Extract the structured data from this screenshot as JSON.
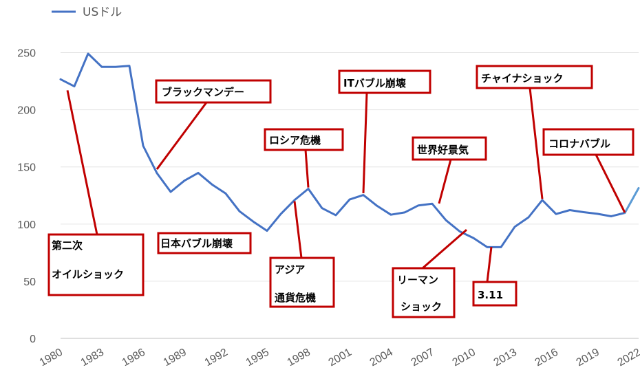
{
  "chart_data": {
    "type": "line",
    "legend": {
      "label": "USドル",
      "position": "top-left"
    },
    "series": [
      {
        "name": "USドル",
        "color": "#4472c4",
        "x": [
          1980,
          1981,
          1982,
          1983,
          1984,
          1985,
          1986,
          1987,
          1988,
          1989,
          1990,
          1991,
          1992,
          1993,
          1994,
          1995,
          1996,
          1997,
          1998,
          1999,
          2000,
          2001,
          2002,
          2003,
          2004,
          2005,
          2006,
          2007,
          2008,
          2009,
          2010,
          2011,
          2012,
          2013,
          2014,
          2015,
          2016,
          2017,
          2018,
          2019,
          2020,
          2021,
          2022
        ],
        "values": [
          226.7,
          220.5,
          249.1,
          237.5,
          237.5,
          238.5,
          168.5,
          144.6,
          128.2,
          138.0,
          144.8,
          134.7,
          126.7,
          111.2,
          102.2,
          94.1,
          108.8,
          121.0,
          130.9,
          113.9,
          107.8,
          121.5,
          125.4,
          115.9,
          108.2,
          110.2,
          116.3,
          117.8,
          103.4,
          93.6,
          87.8,
          79.8,
          79.8,
          97.6,
          105.9,
          121.0,
          108.8,
          112.2,
          110.4,
          109.0,
          106.8,
          109.8,
          131.5
        ]
      }
    ],
    "highlight_segment": {
      "from_x": 2021,
      "to_x": 2022,
      "color": "#5b9bd5"
    },
    "x_ticks": [
      "1980",
      "1983",
      "1986",
      "1989",
      "1992",
      "1995",
      "1998",
      "2001",
      "2004",
      "2007",
      "2010",
      "2013",
      "2016",
      "2019",
      "2022"
    ],
    "y_ticks": [
      "0",
      "50",
      "100",
      "150",
      "200",
      "250"
    ],
    "ylim": [
      0,
      275
    ],
    "xlim": [
      1980,
      2022
    ],
    "grid": "horizontal",
    "annotations": [
      {
        "id": "oil-shock",
        "lines": [
          "第二次",
          "オイルショック"
        ],
        "pointer": [
          1980.5,
          217
        ],
        "box_color": "#c00000"
      },
      {
        "id": "black-monday",
        "lines": [
          "ブラックマンデー"
        ],
        "pointer": [
          1987,
          148
        ],
        "box_color": "#c00000"
      },
      {
        "id": "japan-bubble",
        "lines": [
          "日本バブル崩壊"
        ],
        "pointer": null,
        "box_color": "#c00000"
      },
      {
        "id": "russia-crisis",
        "lines": [
          "ロシア危機"
        ],
        "pointer": [
          1998,
          132
        ],
        "box_color": "#c00000"
      },
      {
        "id": "asia-crisis",
        "lines": [
          "アジア",
          "通貨危機"
        ],
        "pointer": [
          1997,
          120
        ],
        "box_color": "#c00000"
      },
      {
        "id": "it-bubble",
        "lines": [
          "ITバブル崩壊"
        ],
        "pointer": [
          2002,
          127
        ],
        "box_color": "#c00000"
      },
      {
        "id": "global-boom",
        "lines": [
          "世界好景気"
        ],
        "pointer": [
          2007.5,
          118
        ],
        "box_color": "#c00000"
      },
      {
        "id": "lehman-shock",
        "lines": [
          "リーマン",
          "ショック"
        ],
        "pointer": [
          2009.5,
          95
        ],
        "box_color": "#c00000"
      },
      {
        "id": "march-11",
        "lines": [
          "3.11"
        ],
        "pointer": [
          2011.3,
          80
        ],
        "box_color": "#c00000"
      },
      {
        "id": "china-shock",
        "lines": [
          "チャイナショック"
        ],
        "pointer": [
          2015,
          122
        ],
        "box_color": "#c00000"
      },
      {
        "id": "covid-bubble",
        "lines": [
          "コロナバブル"
        ],
        "pointer": [
          2021,
          110
        ],
        "box_color": "#c00000"
      }
    ]
  }
}
